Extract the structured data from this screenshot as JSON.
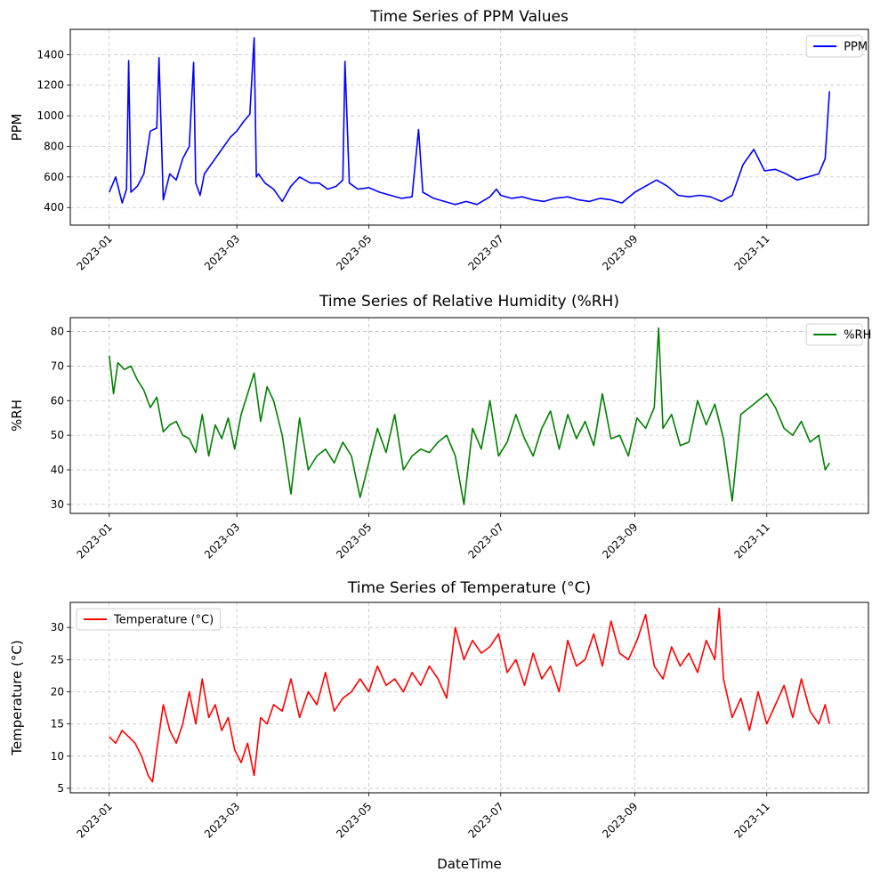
{
  "chart_data": [
    {
      "type": "line",
      "title": "Time Series of PPM Values",
      "xlabel": "",
      "ylabel": "PPM",
      "xlim": [
        "2022-12-14",
        "2023-12-18"
      ],
      "ylim": [
        285,
        1565
      ],
      "yticks": [
        400,
        600,
        800,
        1000,
        1200,
        1400
      ],
      "xticks": [
        "2023-01",
        "2023-03",
        "2023-05",
        "2023-07",
        "2023-09",
        "2023-11"
      ],
      "legend": "top-right",
      "grid": true,
      "series": [
        {
          "name": "PPM",
          "color": "#0000ff",
          "x": [
            "2023-01-01",
            "2023-01-04",
            "2023-01-07",
            "2023-01-09",
            "2023-01-10",
            "2023-01-11",
            "2023-01-14",
            "2023-01-17",
            "2023-01-20",
            "2023-01-23",
            "2023-01-24",
            "2023-01-26",
            "2023-01-29",
            "2023-02-01",
            "2023-02-04",
            "2023-02-07",
            "2023-02-09",
            "2023-02-10",
            "2023-02-12",
            "2023-02-14",
            "2023-02-17",
            "2023-02-20",
            "2023-02-23",
            "2023-02-26",
            "2023-03-01",
            "2023-03-04",
            "2023-03-07",
            "2023-03-09",
            "2023-03-10",
            "2023-03-11",
            "2023-03-14",
            "2023-03-18",
            "2023-03-22",
            "2023-03-26",
            "2023-03-30",
            "2023-04-04",
            "2023-04-08",
            "2023-04-12",
            "2023-04-16",
            "2023-04-19",
            "2023-04-20",
            "2023-04-22",
            "2023-04-26",
            "2023-05-01",
            "2023-05-06",
            "2023-05-11",
            "2023-05-16",
            "2023-05-21",
            "2023-05-24",
            "2023-05-26",
            "2023-05-31",
            "2023-06-05",
            "2023-06-10",
            "2023-06-15",
            "2023-06-20",
            "2023-06-26",
            "2023-06-29",
            "2023-07-01",
            "2023-07-06",
            "2023-07-11",
            "2023-07-16",
            "2023-07-21",
            "2023-07-26",
            "2023-08-01",
            "2023-08-06",
            "2023-08-11",
            "2023-08-16",
            "2023-08-21",
            "2023-08-26",
            "2023-09-01",
            "2023-09-06",
            "2023-09-11",
            "2023-09-16",
            "2023-09-21",
            "2023-09-26",
            "2023-10-01",
            "2023-10-06",
            "2023-10-11",
            "2023-10-16",
            "2023-10-21",
            "2023-10-26",
            "2023-10-31",
            "2023-11-05",
            "2023-11-10",
            "2023-11-15",
            "2023-11-20",
            "2023-11-25",
            "2023-11-28",
            "2023-11-30"
          ],
          "values": [
            500,
            600,
            430,
            520,
            1360,
            500,
            540,
            620,
            900,
            920,
            1380,
            450,
            620,
            580,
            720,
            800,
            1350,
            560,
            480,
            620,
            680,
            740,
            800,
            860,
            900,
            960,
            1010,
            1510,
            600,
            620,
            560,
            520,
            440,
            540,
            600,
            560,
            560,
            520,
            540,
            580,
            1355,
            560,
            520,
            530,
            500,
            480,
            460,
            470,
            910,
            500,
            460,
            440,
            420,
            440,
            420,
            470,
            520,
            480,
            460,
            470,
            450,
            440,
            460,
            470,
            450,
            440,
            460,
            450,
            430,
            500,
            540,
            580,
            540,
            480,
            470,
            480,
            470,
            440,
            480,
            680,
            780,
            640,
            650,
            620,
            580,
            600,
            620,
            720,
            1160
          ]
        }
      ]
    },
    {
      "type": "line",
      "title": "Time Series of Relative Humidity (%RH)",
      "xlabel": "",
      "ylabel": "%RH",
      "xlim": [
        "2022-12-14",
        "2023-12-18"
      ],
      "ylim": [
        27.4,
        84.0
      ],
      "yticks": [
        30,
        40,
        50,
        60,
        70,
        80
      ],
      "xticks": [
        "2023-01",
        "2023-03",
        "2023-05",
        "2023-07",
        "2023-09",
        "2023-11"
      ],
      "legend": "top-right",
      "grid": true,
      "series": [
        {
          "name": "%RH",
          "color": "#008000",
          "x": [
            "2023-01-01",
            "2023-01-03",
            "2023-01-05",
            "2023-01-08",
            "2023-01-11",
            "2023-01-14",
            "2023-01-17",
            "2023-01-20",
            "2023-01-23",
            "2023-01-26",
            "2023-01-29",
            "2023-02-01",
            "2023-02-04",
            "2023-02-07",
            "2023-02-10",
            "2023-02-13",
            "2023-02-16",
            "2023-02-19",
            "2023-02-22",
            "2023-02-25",
            "2023-02-28",
            "2023-03-03",
            "2023-03-06",
            "2023-03-09",
            "2023-03-12",
            "2023-03-15",
            "2023-03-18",
            "2023-03-22",
            "2023-03-26",
            "2023-03-30",
            "2023-04-03",
            "2023-04-07",
            "2023-04-11",
            "2023-04-15",
            "2023-04-19",
            "2023-04-23",
            "2023-04-27",
            "2023-05-01",
            "2023-05-05",
            "2023-05-09",
            "2023-05-13",
            "2023-05-17",
            "2023-05-21",
            "2023-05-25",
            "2023-05-29",
            "2023-06-02",
            "2023-06-06",
            "2023-06-10",
            "2023-06-14",
            "2023-06-18",
            "2023-06-22",
            "2023-06-26",
            "2023-06-30",
            "2023-07-04",
            "2023-07-08",
            "2023-07-12",
            "2023-07-16",
            "2023-07-20",
            "2023-07-24",
            "2023-07-28",
            "2023-08-01",
            "2023-08-05",
            "2023-08-09",
            "2023-08-13",
            "2023-08-17",
            "2023-08-21",
            "2023-08-25",
            "2023-08-29",
            "2023-09-02",
            "2023-09-06",
            "2023-09-10",
            "2023-09-12",
            "2023-09-14",
            "2023-09-18",
            "2023-09-22",
            "2023-09-26",
            "2023-09-30",
            "2023-10-04",
            "2023-10-08",
            "2023-10-12",
            "2023-10-16",
            "2023-10-20",
            "2023-10-24",
            "2023-10-28",
            "2023-11-01",
            "2023-11-05",
            "2023-11-09",
            "2023-11-13",
            "2023-11-17",
            "2023-11-21",
            "2023-11-25",
            "2023-11-28",
            "2023-11-30"
          ],
          "values": [
            73,
            62,
            71,
            69,
            70,
            66,
            63,
            58,
            61,
            51,
            53,
            54,
            50,
            49,
            45,
            56,
            44,
            53,
            49,
            55,
            46,
            56,
            62,
            68,
            54,
            64,
            60,
            50,
            33,
            55,
            40,
            44,
            46,
            42,
            48,
            44,
            32,
            42,
            52,
            45,
            56,
            40,
            44,
            46,
            45,
            48,
            50,
            44,
            30,
            52,
            46,
            60,
            44,
            48,
            56,
            49,
            44,
            52,
            57,
            46,
            56,
            49,
            54,
            47,
            62,
            49,
            50,
            44,
            55,
            52,
            58,
            81,
            52,
            56,
            47,
            48,
            60,
            53,
            59,
            49,
            31,
            56,
            58,
            60,
            62,
            58,
            52,
            50,
            54,
            48,
            50,
            40,
            42
          ]
        }
      ]
    },
    {
      "type": "line",
      "title": "Time Series of Temperature (°C)",
      "xlabel": "DateTime",
      "ylabel": "Temperature (°C)",
      "xlim": [
        "2022-12-14",
        "2023-12-18"
      ],
      "ylim": [
        4.3,
        33.9
      ],
      "yticks": [
        5,
        10,
        15,
        20,
        25,
        30
      ],
      "xticks": [
        "2023-01",
        "2023-03",
        "2023-05",
        "2023-07",
        "2023-09",
        "2023-11"
      ],
      "legend": "top-left",
      "grid": true,
      "series": [
        {
          "name": "Temperature (°C)",
          "color": "#ff0000",
          "x": [
            "2023-01-01",
            "2023-01-04",
            "2023-01-07",
            "2023-01-10",
            "2023-01-13",
            "2023-01-16",
            "2023-01-19",
            "2023-01-21",
            "2023-01-23",
            "2023-01-26",
            "2023-01-29",
            "2023-02-01",
            "2023-02-04",
            "2023-02-07",
            "2023-02-10",
            "2023-02-13",
            "2023-02-16",
            "2023-02-19",
            "2023-02-22",
            "2023-02-25",
            "2023-02-28",
            "2023-03-03",
            "2023-03-06",
            "2023-03-09",
            "2023-03-12",
            "2023-03-15",
            "2023-03-18",
            "2023-03-22",
            "2023-03-26",
            "2023-03-30",
            "2023-04-03",
            "2023-04-07",
            "2023-04-11",
            "2023-04-15",
            "2023-04-19",
            "2023-04-23",
            "2023-04-27",
            "2023-05-01",
            "2023-05-05",
            "2023-05-09",
            "2023-05-13",
            "2023-05-17",
            "2023-05-21",
            "2023-05-25",
            "2023-05-29",
            "2023-06-02",
            "2023-06-06",
            "2023-06-10",
            "2023-06-14",
            "2023-06-18",
            "2023-06-22",
            "2023-06-26",
            "2023-06-30",
            "2023-07-04",
            "2023-07-08",
            "2023-07-12",
            "2023-07-16",
            "2023-07-20",
            "2023-07-24",
            "2023-07-28",
            "2023-08-01",
            "2023-08-05",
            "2023-08-09",
            "2023-08-13",
            "2023-08-17",
            "2023-08-21",
            "2023-08-25",
            "2023-08-29",
            "2023-09-02",
            "2023-09-06",
            "2023-09-10",
            "2023-09-14",
            "2023-09-18",
            "2023-09-22",
            "2023-09-26",
            "2023-09-30",
            "2023-10-04",
            "2023-10-08",
            "2023-10-10",
            "2023-10-12",
            "2023-10-16",
            "2023-10-20",
            "2023-10-24",
            "2023-10-28",
            "2023-11-01",
            "2023-11-05",
            "2023-11-09",
            "2023-11-13",
            "2023-11-17",
            "2023-11-21",
            "2023-11-25",
            "2023-11-28",
            "2023-11-30"
          ],
          "values": [
            13,
            12,
            14,
            13,
            12,
            10,
            7,
            6,
            11,
            18,
            14,
            12,
            15,
            20,
            15,
            22,
            16,
            18,
            14,
            16,
            11,
            9,
            12,
            7,
            16,
            15,
            18,
            17,
            22,
            16,
            20,
            18,
            23,
            17,
            19,
            20,
            22,
            20,
            24,
            21,
            22,
            20,
            23,
            21,
            24,
            22,
            19,
            30,
            25,
            28,
            26,
            27,
            29,
            23,
            25,
            21,
            26,
            22,
            24,
            20,
            28,
            24,
            25,
            29,
            24,
            31,
            26,
            25,
            28,
            32,
            24,
            22,
            27,
            24,
            26,
            23,
            28,
            25,
            33,
            22,
            16,
            19,
            14,
            20,
            15,
            18,
            21,
            16,
            22,
            17,
            15,
            18,
            15
          ]
        }
      ]
    }
  ]
}
